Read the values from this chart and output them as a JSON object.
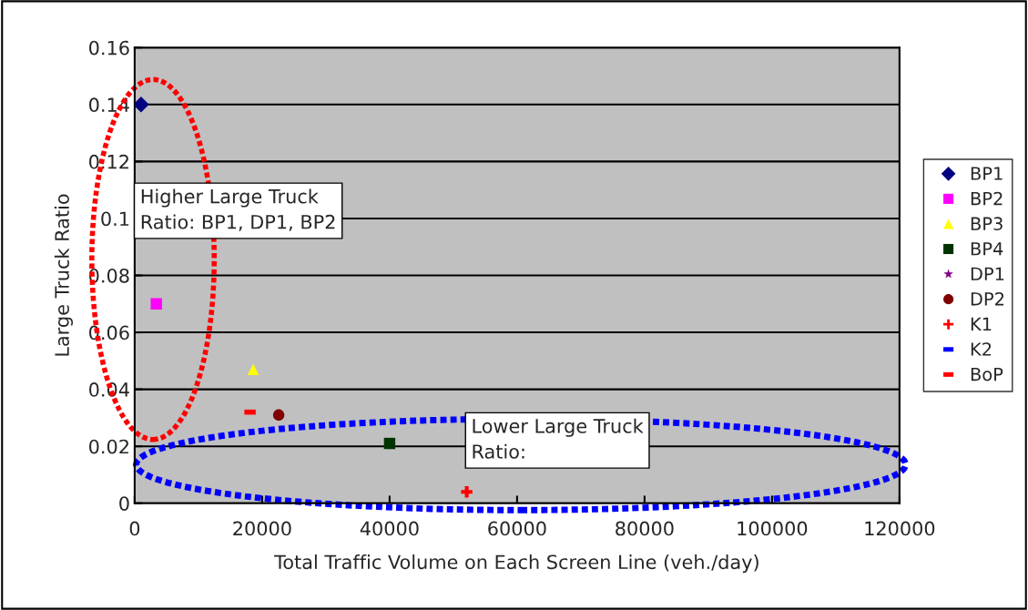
{
  "chart_data": {
    "type": "scatter",
    "xlabel": "Total Traffic Volume on Each Screen Line (veh./day)",
    "ylabel": "Large Truck Ratio",
    "xlim": [
      0,
      120000
    ],
    "ylim": [
      0,
      0.16
    ],
    "xticks": [
      0,
      20000,
      40000,
      60000,
      80000,
      100000,
      120000
    ],
    "yticks": [
      0,
      0.02,
      0.04,
      0.06,
      0.08,
      0.1,
      0.12,
      0.14,
      0.16
    ],
    "grid": "y",
    "legend": "right",
    "annotations": [
      "Higher Large Truck\nRatio: BP1, DP1, BP2",
      "Lower Large Truck\nRatio:"
    ],
    "series": [
      {
        "name": "BP1",
        "color": "#000080",
        "marker": "diamond",
        "x": [
          1000
        ],
        "values": [
          0.14
        ]
      },
      {
        "name": "BP2",
        "color": "#ff00ff",
        "marker": "square",
        "x": [
          3400
        ],
        "values": [
          0.07
        ]
      },
      {
        "name": "BP3",
        "color": "#ffff00",
        "marker": "triangle",
        "x": [
          18600
        ],
        "values": [
          0.047
        ]
      },
      {
        "name": "BP4",
        "color": "#003300",
        "marker": "square",
        "x": [
          40000
        ],
        "values": [
          0.021
        ]
      },
      {
        "name": "DP1",
        "color": "#800080",
        "marker": "star",
        "x": [
          null
        ],
        "values": [
          null
        ]
      },
      {
        "name": "DP2",
        "color": "#800000",
        "marker": "circle",
        "x": [
          22600
        ],
        "values": [
          0.031
        ]
      },
      {
        "name": "K1",
        "color": "#ff0000",
        "marker": "cross",
        "x": [
          52100
        ],
        "values": [
          0.004
        ]
      },
      {
        "name": "K2",
        "color": "#0000ff",
        "x": [
          null
        ],
        "values": [
          null
        ]
      },
      {
        "name": "BoP",
        "color": "#ff0000",
        "x": [
          18100
        ],
        "values": [
          0.032
        ]
      }
    ]
  }
}
